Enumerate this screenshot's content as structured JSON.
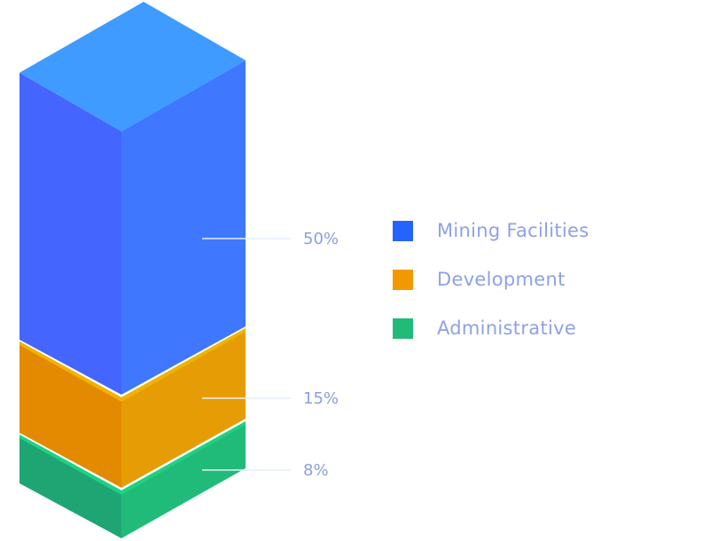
{
  "chart_data": {
    "type": "bar",
    "subtype": "stacked-3d-isometric",
    "categories": [
      "Mining Facilities",
      "Development",
      "Administrative"
    ],
    "series": [
      {
        "name": "Mining Facilities",
        "value": 50,
        "label": "50%",
        "color": "#2563ff"
      },
      {
        "name": "Development",
        "value": 15,
        "label": "15%",
        "color": "#f29900"
      },
      {
        "name": "Administrative",
        "value": 8,
        "label": "8%",
        "color": "#20bb78"
      }
    ],
    "unit": "%",
    "legend_position": "right",
    "grid": false
  }
}
